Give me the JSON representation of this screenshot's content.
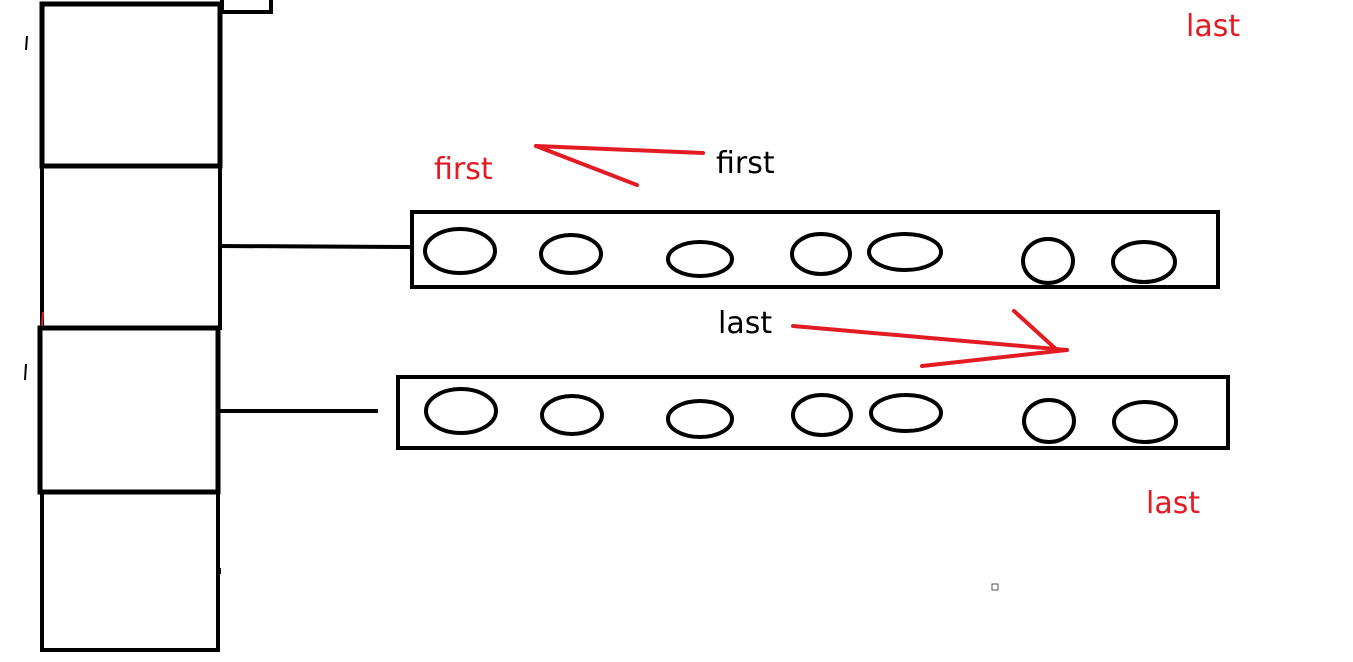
{
  "labels": {
    "last_top_right": "last",
    "first_red": "first",
    "first_black": "first",
    "last_middle": "last",
    "last_bottom_right": "last"
  },
  "colors": {
    "stroke": "#000000",
    "accent_red": "#e31b23",
    "text_black": "#000000",
    "background": "#ffffff"
  }
}
